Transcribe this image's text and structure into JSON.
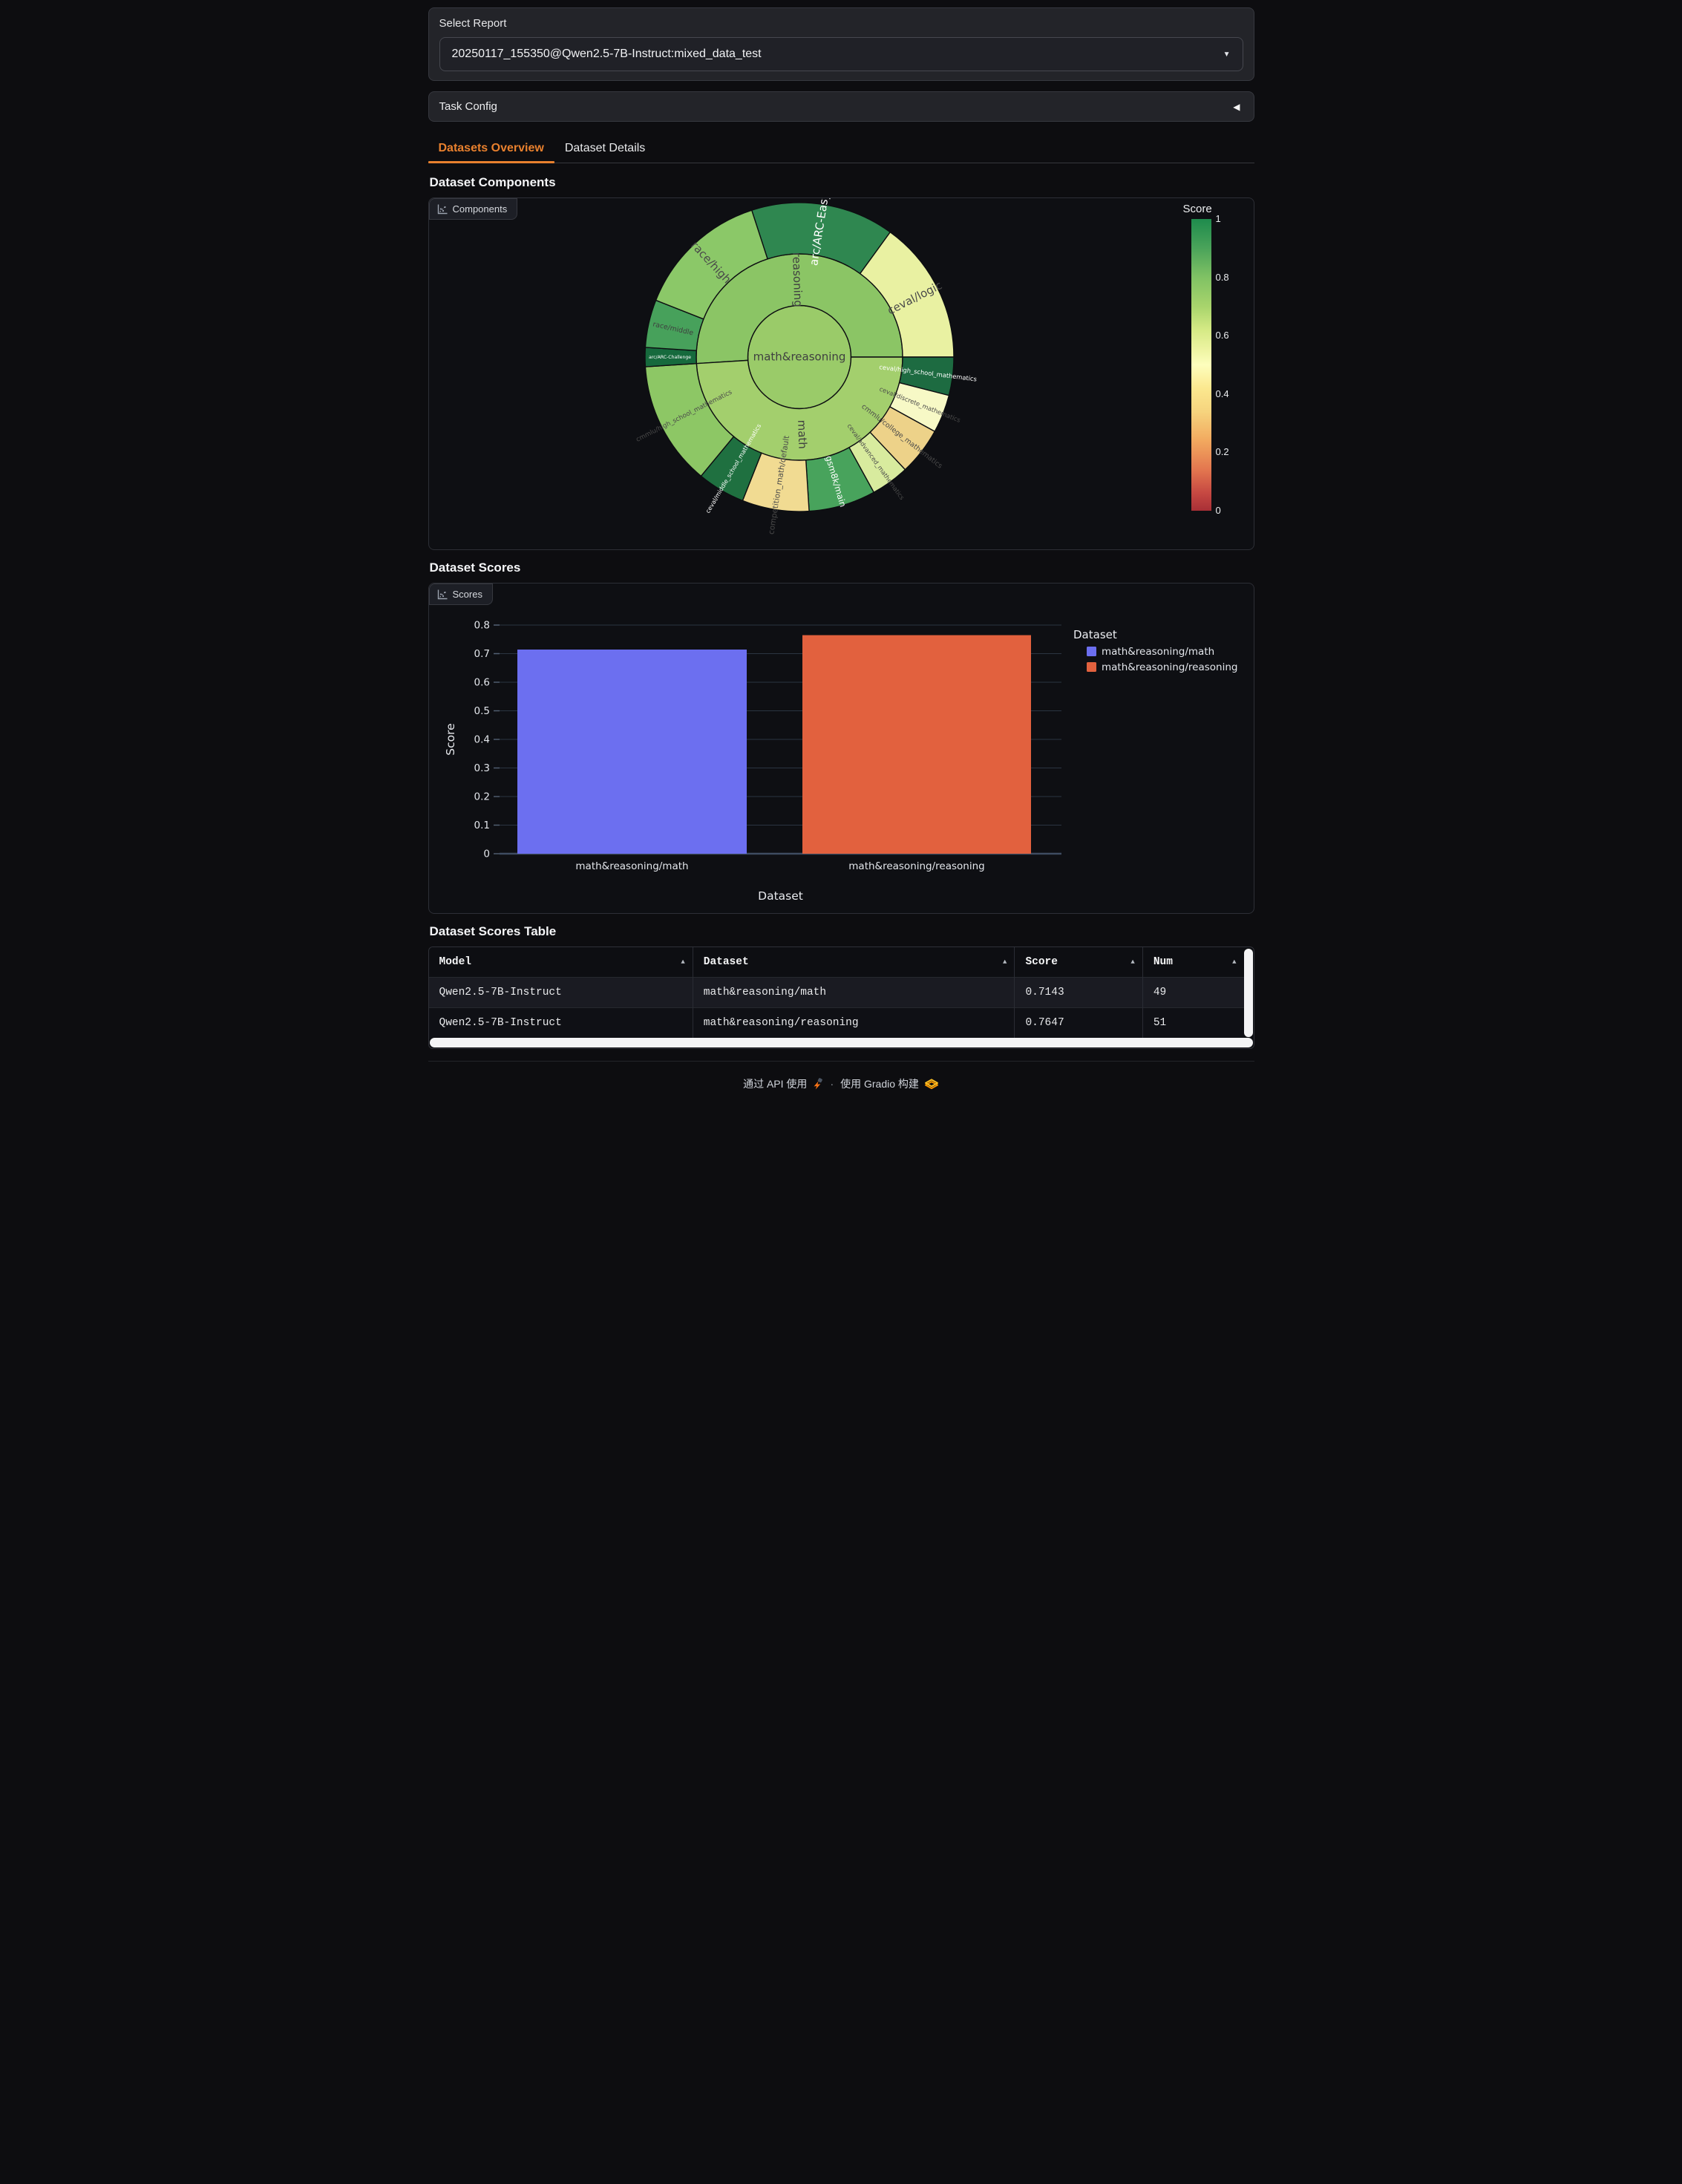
{
  "report_selector": {
    "label": "Select Report",
    "value": "20250117_155350@Qwen2.5-7B-Instruct:mixed_data_test"
  },
  "task_config": {
    "label": "Task Config",
    "collapse_icon": "left-triangle"
  },
  "tabs": [
    {
      "label": "Datasets Overview",
      "active": true
    },
    {
      "label": "Dataset Details",
      "active": false
    }
  ],
  "sections": {
    "components_heading": "Dataset Components",
    "components_plot_label": "Components",
    "scores_heading": "Dataset Scores",
    "scores_plot_label": "Scores",
    "table_heading": "Dataset Scores Table"
  },
  "chart_data": [
    {
      "type": "sunburst",
      "center": {
        "label": "math&reasoning",
        "color": "#9acb69",
        "label_color": "#3f4040"
      },
      "rings": [
        {
          "label": "reasoning",
          "value": 51,
          "score": 0.7647,
          "color": "#8bc565",
          "label_color": "#3f4040"
        },
        {
          "label": "math",
          "value": 49,
          "score": 0.7143,
          "color": "#a3cf6d",
          "label_color": "#3f4040"
        }
      ],
      "start_angle_deg": -18,
      "segments": [
        {
          "label": "arc/ARC-Easy",
          "parent": "reasoning",
          "value": 15,
          "color": "#2f8750",
          "label_color": "#ffffff"
        },
        {
          "label": "ceval/logic",
          "parent": "reasoning",
          "value": 15,
          "color": "#e9f1a2",
          "label_color": "#4a4a4a"
        },
        {
          "label": "ceval/high_school_mathematics",
          "parent": "math",
          "value": 4,
          "color": "#1d6b41",
          "label_color": "#ffffff"
        },
        {
          "label": "ceval/discrete_mathematics",
          "parent": "math",
          "value": 4,
          "color": "#f7f9c6",
          "label_color": "#4a4a4a"
        },
        {
          "label": "cmmlu/college_mathematics",
          "parent": "math",
          "value": 5,
          "color": "#edd289",
          "label_color": "#4a4a4a"
        },
        {
          "label": "ceval/advanced_mathematics",
          "parent": "math",
          "value": 4,
          "color": "#d8eb9e",
          "label_color": "#4a4a4a"
        },
        {
          "label": "gsm8k/main",
          "parent": "math",
          "value": 7,
          "color": "#48a35c",
          "label_color": "#ffffff"
        },
        {
          "label": "competition_math/default",
          "parent": "math",
          "value": 7,
          "color": "#f1db92",
          "label_color": "#4a4a4a"
        },
        {
          "label": "ceval/middle_school_mathematics",
          "parent": "math",
          "value": 5,
          "color": "#1f7040",
          "label_color": "#ffffff"
        },
        {
          "label": "cmmlu/high_school_mathematics",
          "parent": "math",
          "value": 13,
          "color": "#8dc765",
          "label_color": "#4a4a4a"
        },
        {
          "label": "arc/ARC-Challenge",
          "parent": "reasoning",
          "value": 2,
          "color": "#166a3d",
          "label_color": "#ffffff"
        },
        {
          "label": "race/middle",
          "parent": "reasoning",
          "value": 5,
          "color": "#47a15b",
          "label_color": "#3f3f3f"
        },
        {
          "label": "race/high",
          "parent": "reasoning",
          "value": 14,
          "color": "#8bc868",
          "label_color": "#4a4a4a"
        }
      ],
      "colorbar": {
        "title": "Score",
        "ticks": [
          1,
          0.8,
          0.6,
          0.4,
          0.2,
          0
        ],
        "colormap": "RdYlGn",
        "range": [
          0,
          1
        ]
      }
    },
    {
      "type": "bar",
      "categories": [
        "math&reasoning/math",
        "math&reasoning/reasoning"
      ],
      "values": [
        0.7143,
        0.7647
      ],
      "colors": [
        "#6c6ff0",
        "#e2613e"
      ],
      "title": "",
      "xlabel": "Dataset",
      "ylabel": "Score",
      "ylim": [
        0,
        0.8
      ],
      "yticks": [
        0,
        0.1,
        0.2,
        0.3,
        0.4,
        0.5,
        0.6,
        0.7,
        0.8
      ],
      "grid": true,
      "legend": {
        "title": "Dataset",
        "position": "right",
        "entries": [
          {
            "label": "math&reasoning/math",
            "color": "#6c6ff0"
          },
          {
            "label": "math&reasoning/reasoning",
            "color": "#e2613e"
          }
        ]
      }
    }
  ],
  "table": {
    "columns": [
      "Model",
      "Dataset",
      "Score",
      "Num"
    ],
    "sort_icon": "up-triangle",
    "rows": [
      [
        "Qwen2.5-7B-Instruct",
        "math&reasoning/math",
        "0.7143",
        "49"
      ],
      [
        "Qwen2.5-7B-Instruct",
        "math&reasoning/reasoning",
        "0.7647",
        "51"
      ]
    ]
  },
  "footer": {
    "use_api": "通过 API 使用",
    "separator": "·",
    "built_with": "使用 Gradio 构建"
  },
  "colors": {
    "accent_orange": "#e8802e",
    "bar_blue": "#6c6ff0",
    "bar_orange": "#e2613e",
    "panel_bg": "#0e0f13"
  }
}
